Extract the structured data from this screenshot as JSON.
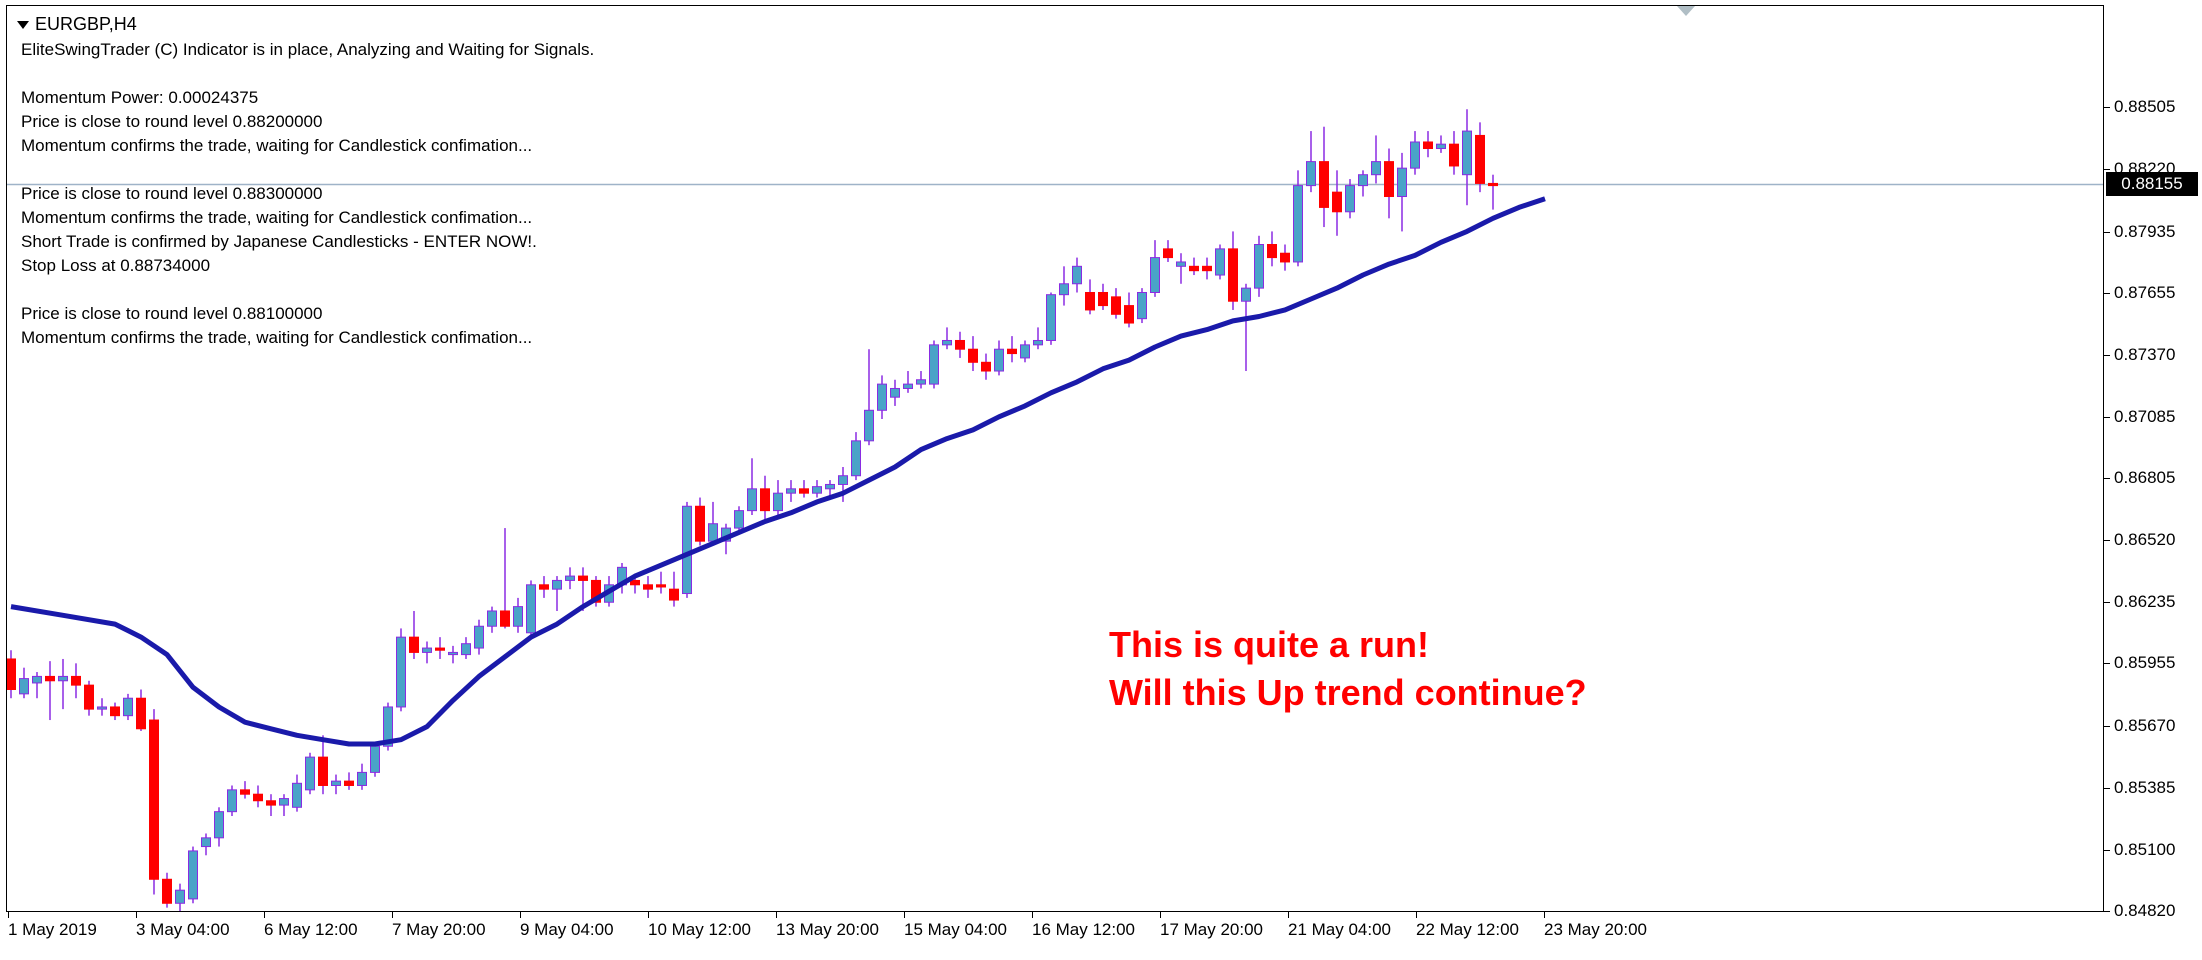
{
  "window": {
    "symbol": "EURGBP,H4"
  },
  "info_lines": [
    "EliteSwingTrader (C) Indicator is in place, Analyzing and Waiting for Signals.",
    "",
    "Momentum Power: 0.00024375",
    "Price is close to round level 0.88200000",
    "Momentum confirms the trade, waiting for Candlestick confimation...",
    "",
    "Price is close to round level 0.88300000",
    "Momentum confirms the trade, waiting for Candlestick confimation...",
    "Short Trade is confirmed by Japanese Candlesticks - ENTER NOW!.",
    "Stop Loss at 0.88734000",
    "",
    "Price is close to round level 0.88100000",
    "Momentum confirms the trade, waiting for Candlestick confimation..."
  ],
  "annotation": {
    "line1": "This is quite a run!",
    "line2": "Will this Up trend continue?"
  },
  "price_axis": {
    "ticks": [
      "0.88505",
      "0.88220",
      "0.87935",
      "0.87655",
      "0.87370",
      "0.87085",
      "0.86805",
      "0.86520",
      "0.86235",
      "0.85955",
      "0.85670",
      "0.85385",
      "0.85100",
      "0.84820"
    ],
    "current_price": "0.88155"
  },
  "time_axis": {
    "labels": [
      "1 May 2019",
      "3 May 04:00",
      "6 May 12:00",
      "7 May 20:00",
      "9 May 04:00",
      "10 May 12:00",
      "13 May 20:00",
      "15 May 04:00",
      "16 May 12:00",
      "17 May 20:00",
      "21 May 04:00",
      "22 May 12:00",
      "23 May 20:00"
    ]
  },
  "colors": {
    "bull_candle": "#4aa3c8",
    "bull_border": "#8a2be2",
    "bear_candle": "#ff0000",
    "wick": "#8a2be2",
    "moving_average": "#1a1aaa",
    "price_line": "#9fb3c8",
    "annotation": "#ff0000"
  },
  "chart_data": {
    "type": "candlestick",
    "symbol": "EURGBP",
    "timeframe": "H4",
    "ylim": [
      0.8482,
      0.8879
    ],
    "candles": [
      {
        "o": 0.8598,
        "h": 0.8602,
        "l": 0.858,
        "c": 0.8584
      },
      {
        "o": 0.8582,
        "h": 0.8594,
        "l": 0.858,
        "c": 0.8589
      },
      {
        "o": 0.8587,
        "h": 0.8592,
        "l": 0.858,
        "c": 0.859
      },
      {
        "o": 0.859,
        "h": 0.8597,
        "l": 0.857,
        "c": 0.8588
      },
      {
        "o": 0.8588,
        "h": 0.8598,
        "l": 0.8575,
        "c": 0.859
      },
      {
        "o": 0.859,
        "h": 0.8596,
        "l": 0.858,
        "c": 0.8586
      },
      {
        "o": 0.8586,
        "h": 0.8588,
        "l": 0.8572,
        "c": 0.8575
      },
      {
        "o": 0.8575,
        "h": 0.858,
        "l": 0.8572,
        "c": 0.8576
      },
      {
        "o": 0.8576,
        "h": 0.8578,
        "l": 0.857,
        "c": 0.8572
      },
      {
        "o": 0.8572,
        "h": 0.8582,
        "l": 0.857,
        "c": 0.858
      },
      {
        "o": 0.858,
        "h": 0.8584,
        "l": 0.8565,
        "c": 0.8566
      },
      {
        "o": 0.857,
        "h": 0.8575,
        "l": 0.849,
        "c": 0.8497
      },
      {
        "o": 0.8497,
        "h": 0.85,
        "l": 0.8484,
        "c": 0.8486
      },
      {
        "o": 0.8486,
        "h": 0.8495,
        "l": 0.848,
        "c": 0.8492
      },
      {
        "o": 0.8488,
        "h": 0.8512,
        "l": 0.8486,
        "c": 0.851
      },
      {
        "o": 0.8512,
        "h": 0.8518,
        "l": 0.8508,
        "c": 0.8516
      },
      {
        "o": 0.8516,
        "h": 0.853,
        "l": 0.8512,
        "c": 0.8528
      },
      {
        "o": 0.8528,
        "h": 0.854,
        "l": 0.8526,
        "c": 0.8538
      },
      {
        "o": 0.8538,
        "h": 0.8542,
        "l": 0.8534,
        "c": 0.8536
      },
      {
        "o": 0.8536,
        "h": 0.854,
        "l": 0.853,
        "c": 0.8533
      },
      {
        "o": 0.8533,
        "h": 0.8536,
        "l": 0.8526,
        "c": 0.8531
      },
      {
        "o": 0.8531,
        "h": 0.8536,
        "l": 0.8526,
        "c": 0.8534
      },
      {
        "o": 0.853,
        "h": 0.8545,
        "l": 0.8528,
        "c": 0.8541
      },
      {
        "o": 0.8538,
        "h": 0.8555,
        "l": 0.8536,
        "c": 0.8553
      },
      {
        "o": 0.8553,
        "h": 0.8563,
        "l": 0.8536,
        "c": 0.854
      },
      {
        "o": 0.854,
        "h": 0.8545,
        "l": 0.8536,
        "c": 0.8542
      },
      {
        "o": 0.8542,
        "h": 0.8546,
        "l": 0.8538,
        "c": 0.854
      },
      {
        "o": 0.854,
        "h": 0.855,
        "l": 0.8538,
        "c": 0.8546
      },
      {
        "o": 0.8546,
        "h": 0.856,
        "l": 0.8544,
        "c": 0.8558
      },
      {
        "o": 0.8558,
        "h": 0.8578,
        "l": 0.8556,
        "c": 0.8576
      },
      {
        "o": 0.8576,
        "h": 0.8612,
        "l": 0.8574,
        "c": 0.8608
      },
      {
        "o": 0.8608,
        "h": 0.862,
        "l": 0.8598,
        "c": 0.8601
      },
      {
        "o": 0.8601,
        "h": 0.8606,
        "l": 0.8596,
        "c": 0.8603
      },
      {
        "o": 0.8603,
        "h": 0.8608,
        "l": 0.8598,
        "c": 0.8602
      },
      {
        "o": 0.86,
        "h": 0.8604,
        "l": 0.8596,
        "c": 0.8601
      },
      {
        "o": 0.86,
        "h": 0.8608,
        "l": 0.8598,
        "c": 0.8605
      },
      {
        "o": 0.8603,
        "h": 0.8616,
        "l": 0.86,
        "c": 0.8613
      },
      {
        "o": 0.8613,
        "h": 0.8622,
        "l": 0.861,
        "c": 0.862
      },
      {
        "o": 0.862,
        "h": 0.8658,
        "l": 0.8612,
        "c": 0.8613
      },
      {
        "o": 0.8613,
        "h": 0.8626,
        "l": 0.861,
        "c": 0.8622
      },
      {
        "o": 0.861,
        "h": 0.8634,
        "l": 0.8608,
        "c": 0.8632
      },
      {
        "o": 0.8632,
        "h": 0.8636,
        "l": 0.8626,
        "c": 0.863
      },
      {
        "o": 0.863,
        "h": 0.8636,
        "l": 0.862,
        "c": 0.8634
      },
      {
        "o": 0.8634,
        "h": 0.864,
        "l": 0.863,
        "c": 0.8636
      },
      {
        "o": 0.8636,
        "h": 0.864,
        "l": 0.862,
        "c": 0.8634
      },
      {
        "o": 0.8634,
        "h": 0.8636,
        "l": 0.8622,
        "c": 0.8624
      },
      {
        "o": 0.8624,
        "h": 0.8636,
        "l": 0.8622,
        "c": 0.8632
      },
      {
        "o": 0.8632,
        "h": 0.8642,
        "l": 0.8628,
        "c": 0.864
      },
      {
        "o": 0.8634,
        "h": 0.8636,
        "l": 0.8628,
        "c": 0.8632
      },
      {
        "o": 0.8632,
        "h": 0.8636,
        "l": 0.8626,
        "c": 0.863
      },
      {
        "o": 0.8632,
        "h": 0.8638,
        "l": 0.8628,
        "c": 0.8631
      },
      {
        "o": 0.863,
        "h": 0.8638,
        "l": 0.8622,
        "c": 0.8625
      },
      {
        "o": 0.8628,
        "h": 0.867,
        "l": 0.8626,
        "c": 0.8668
      },
      {
        "o": 0.8668,
        "h": 0.8672,
        "l": 0.865,
        "c": 0.8652
      },
      {
        "o": 0.8652,
        "h": 0.867,
        "l": 0.865,
        "c": 0.866
      },
      {
        "o": 0.8652,
        "h": 0.866,
        "l": 0.8646,
        "c": 0.8658
      },
      {
        "o": 0.8658,
        "h": 0.8668,
        "l": 0.8656,
        "c": 0.8666
      },
      {
        "o": 0.8666,
        "h": 0.869,
        "l": 0.8664,
        "c": 0.8676
      },
      {
        "o": 0.8676,
        "h": 0.8682,
        "l": 0.8662,
        "c": 0.8666
      },
      {
        "o": 0.8666,
        "h": 0.868,
        "l": 0.8664,
        "c": 0.8674
      },
      {
        "o": 0.8674,
        "h": 0.868,
        "l": 0.867,
        "c": 0.8676
      },
      {
        "o": 0.8676,
        "h": 0.868,
        "l": 0.8672,
        "c": 0.8674
      },
      {
        "o": 0.8674,
        "h": 0.868,
        "l": 0.8672,
        "c": 0.8677
      },
      {
        "o": 0.8676,
        "h": 0.868,
        "l": 0.8672,
        "c": 0.8678
      },
      {
        "o": 0.8678,
        "h": 0.8686,
        "l": 0.867,
        "c": 0.8682
      },
      {
        "o": 0.8682,
        "h": 0.8702,
        "l": 0.868,
        "c": 0.8698
      },
      {
        "o": 0.8698,
        "h": 0.874,
        "l": 0.8696,
        "c": 0.8712
      },
      {
        "o": 0.8712,
        "h": 0.8728,
        "l": 0.8708,
        "c": 0.8724
      },
      {
        "o": 0.8718,
        "h": 0.8726,
        "l": 0.8714,
        "c": 0.8722
      },
      {
        "o": 0.8722,
        "h": 0.873,
        "l": 0.872,
        "c": 0.8724
      },
      {
        "o": 0.8724,
        "h": 0.873,
        "l": 0.8722,
        "c": 0.8726
      },
      {
        "o": 0.8724,
        "h": 0.8744,
        "l": 0.8722,
        "c": 0.8742
      },
      {
        "o": 0.8742,
        "h": 0.875,
        "l": 0.874,
        "c": 0.8744
      },
      {
        "o": 0.8744,
        "h": 0.8748,
        "l": 0.8736,
        "c": 0.874
      },
      {
        "o": 0.874,
        "h": 0.8746,
        "l": 0.873,
        "c": 0.8734
      },
      {
        "o": 0.8734,
        "h": 0.8738,
        "l": 0.8726,
        "c": 0.873
      },
      {
        "o": 0.873,
        "h": 0.8744,
        "l": 0.8728,
        "c": 0.874
      },
      {
        "o": 0.874,
        "h": 0.8746,
        "l": 0.8734,
        "c": 0.8738
      },
      {
        "o": 0.8736,
        "h": 0.8744,
        "l": 0.8734,
        "c": 0.8742
      },
      {
        "o": 0.8742,
        "h": 0.875,
        "l": 0.874,
        "c": 0.8744
      },
      {
        "o": 0.8744,
        "h": 0.8766,
        "l": 0.8742,
        "c": 0.8765
      },
      {
        "o": 0.8765,
        "h": 0.8778,
        "l": 0.876,
        "c": 0.877
      },
      {
        "o": 0.877,
        "h": 0.8782,
        "l": 0.8766,
        "c": 0.8778
      },
      {
        "o": 0.8766,
        "h": 0.8772,
        "l": 0.8756,
        "c": 0.8758
      },
      {
        "o": 0.8766,
        "h": 0.877,
        "l": 0.8758,
        "c": 0.876
      },
      {
        "o": 0.8764,
        "h": 0.8768,
        "l": 0.8754,
        "c": 0.8756
      },
      {
        "o": 0.876,
        "h": 0.8766,
        "l": 0.875,
        "c": 0.8752
      },
      {
        "o": 0.8754,
        "h": 0.8768,
        "l": 0.8752,
        "c": 0.8766
      },
      {
        "o": 0.8766,
        "h": 0.879,
        "l": 0.8764,
        "c": 0.8782
      },
      {
        "o": 0.8786,
        "h": 0.879,
        "l": 0.878,
        "c": 0.8782
      },
      {
        "o": 0.8778,
        "h": 0.8784,
        "l": 0.877,
        "c": 0.878
      },
      {
        "o": 0.8778,
        "h": 0.8782,
        "l": 0.8774,
        "c": 0.8776
      },
      {
        "o": 0.8778,
        "h": 0.8782,
        "l": 0.8772,
        "c": 0.8776
      },
      {
        "o": 0.8774,
        "h": 0.8788,
        "l": 0.8772,
        "c": 0.8786
      },
      {
        "o": 0.8786,
        "h": 0.8794,
        "l": 0.8758,
        "c": 0.8762
      },
      {
        "o": 0.8762,
        "h": 0.877,
        "l": 0.873,
        "c": 0.8768
      },
      {
        "o": 0.8768,
        "h": 0.8792,
        "l": 0.8764,
        "c": 0.8788
      },
      {
        "o": 0.8788,
        "h": 0.8794,
        "l": 0.8778,
        "c": 0.8782
      },
      {
        "o": 0.8784,
        "h": 0.8788,
        "l": 0.8776,
        "c": 0.878
      },
      {
        "o": 0.878,
        "h": 0.8822,
        "l": 0.8778,
        "c": 0.8815
      },
      {
        "o": 0.8815,
        "h": 0.884,
        "l": 0.8812,
        "c": 0.8826
      },
      {
        "o": 0.8826,
        "h": 0.8842,
        "l": 0.8796,
        "c": 0.8805
      },
      {
        "o": 0.8812,
        "h": 0.8822,
        "l": 0.8792,
        "c": 0.8803
      },
      {
        "o": 0.8803,
        "h": 0.8818,
        "l": 0.88,
        "c": 0.8815
      },
      {
        "o": 0.8815,
        "h": 0.8822,
        "l": 0.881,
        "c": 0.882
      },
      {
        "o": 0.882,
        "h": 0.8838,
        "l": 0.8816,
        "c": 0.8826
      },
      {
        "o": 0.8826,
        "h": 0.8832,
        "l": 0.88,
        "c": 0.881
      },
      {
        "o": 0.881,
        "h": 0.883,
        "l": 0.8794,
        "c": 0.8823
      },
      {
        "o": 0.8823,
        "h": 0.884,
        "l": 0.882,
        "c": 0.8835
      },
      {
        "o": 0.8835,
        "h": 0.884,
        "l": 0.8828,
        "c": 0.8832
      },
      {
        "o": 0.8832,
        "h": 0.8838,
        "l": 0.883,
        "c": 0.8834
      },
      {
        "o": 0.8834,
        "h": 0.884,
        "l": 0.882,
        "c": 0.8824
      },
      {
        "o": 0.882,
        "h": 0.885,
        "l": 0.8806,
        "c": 0.884
      },
      {
        "o": 0.8838,
        "h": 0.8844,
        "l": 0.8812,
        "c": 0.8816
      },
      {
        "o": 0.8816,
        "h": 0.882,
        "l": 0.8804,
        "c": 0.8815
      }
    ],
    "moving_average": [
      [
        0,
        0.8622
      ],
      [
        4,
        0.8618
      ],
      [
        8,
        0.8614
      ],
      [
        10,
        0.8608
      ],
      [
        12,
        0.86
      ],
      [
        14,
        0.8585
      ],
      [
        16,
        0.8576
      ],
      [
        18,
        0.8569
      ],
      [
        20,
        0.8566
      ],
      [
        22,
        0.8563
      ],
      [
        24,
        0.8561
      ],
      [
        26,
        0.8559
      ],
      [
        28,
        0.8559
      ],
      [
        30,
        0.8561
      ],
      [
        32,
        0.8567
      ],
      [
        34,
        0.8579
      ],
      [
        36,
        0.859
      ],
      [
        38,
        0.8599
      ],
      [
        40,
        0.8608
      ],
      [
        42,
        0.8614
      ],
      [
        44,
        0.8622
      ],
      [
        46,
        0.8629
      ],
      [
        48,
        0.8636
      ],
      [
        50,
        0.8641
      ],
      [
        52,
        0.8646
      ],
      [
        54,
        0.8651
      ],
      [
        56,
        0.8656
      ],
      [
        58,
        0.8661
      ],
      [
        60,
        0.8665
      ],
      [
        62,
        0.867
      ],
      [
        64,
        0.8674
      ],
      [
        66,
        0.868
      ],
      [
        68,
        0.8686
      ],
      [
        70,
        0.8694
      ],
      [
        72,
        0.8699
      ],
      [
        74,
        0.8703
      ],
      [
        76,
        0.8709
      ],
      [
        78,
        0.8714
      ],
      [
        80,
        0.872
      ],
      [
        82,
        0.8725
      ],
      [
        84,
        0.8731
      ],
      [
        86,
        0.8735
      ],
      [
        88,
        0.8741
      ],
      [
        90,
        0.8746
      ],
      [
        92,
        0.8749
      ],
      [
        94,
        0.8753
      ],
      [
        96,
        0.8755
      ],
      [
        98,
        0.8758
      ],
      [
        100,
        0.8763
      ],
      [
        102,
        0.8768
      ],
      [
        104,
        0.8774
      ],
      [
        106,
        0.8779
      ],
      [
        108,
        0.8783
      ],
      [
        110,
        0.8789
      ],
      [
        112,
        0.8794
      ],
      [
        114,
        0.88
      ],
      [
        116,
        0.8805
      ],
      [
        118,
        0.8809
      ]
    ],
    "current_price": 0.88155
  }
}
